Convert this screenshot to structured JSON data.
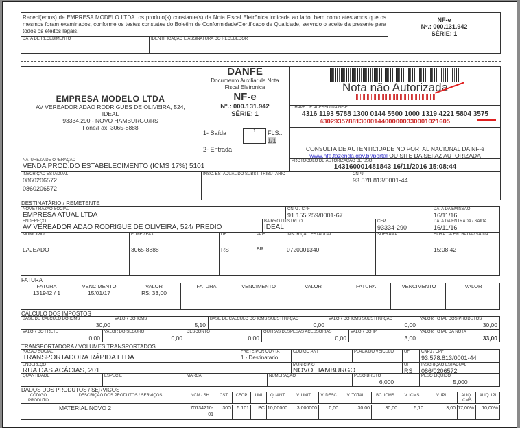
{
  "receipt": {
    "text": "Recebi(emos) de EMPRESA MODELO LTDA. os produto(s) constante(s) da Nota Fiscal Eletrônica indicada ao lado, bem como atestamos que os mesmos foram examinados, conforme os testes constates do Boletim de Conformidade/Certificado de Qualidade, servndo o aceite da presente para todos os efeitos legais.",
    "date_label": "DATA DE RECEBIMENTO",
    "signature_label": "IDENTIFICAÇÃO E ASSINATURA DO RECEBEDOR",
    "nfe": "NF-e",
    "number": "Nº.: 000.131.942",
    "serie": "SÉRIE: 1"
  },
  "emitter": {
    "name": "EMPRESA MODELO LTDA",
    "address1": "AV VEREADOR ADAO RODRIGUES DE OLIVEIRA, 524,",
    "address2": "IDEAL",
    "cep_city": "93334.290 - NOVO HAMBURGO/RS",
    "phone": "Fone/Fax: 3065-8888"
  },
  "danfe": {
    "title": "DANFE",
    "subtitle": "Documento Auxiliar da Nota Fiscal Eletronica",
    "nfe": "NF-e",
    "number": "Nº.: 000.131.942",
    "serie": "SÉRIE: 1",
    "saida": "1- Saída",
    "entrada": "2- Entrada",
    "tipo": "1",
    "fls_label": "FLS.:",
    "fls": "1/1"
  },
  "access": {
    "status": "Nota não Autorizada",
    "chave_label": "CHAVE DE ACESSO DA NF-E",
    "chave": "4316 1193 5788 1300 0144 5500 1000 1319 4221 5804 3575",
    "chave_red": "43029357881300014400000033000102160​5",
    "consulta": "CONSULTA DE AUTENTICIDADE NO PORTAL NACIONAL DA NF-e",
    "consulta_link": "www.nfe.fazenda.gov.br/portal",
    "consulta_rest": " OU SITE DA SEFAZ AUTORIZADA",
    "protocolo_label": "PROTOCOLO DE AUTORIZAÇÃO DE USO",
    "protocolo": "143160001481843 16/11/2016 15:08:44",
    "accent": "#cc2a2a"
  },
  "natureza": {
    "label": "NATUREZA DE OPERAÇÃO",
    "value": "VENDA PROD.DO ESTABELECIMENTO (ICMS 17%) 5101"
  },
  "ie": {
    "label": "INSCRIÇÃO ESTADUAL",
    "value1": "0860206572",
    "value2": "0860206572",
    "st_label": "INSC. ESTADUAL DO SUBST. TRIBUTÁRIO",
    "cnpj_label": "CNPJ",
    "cnpj": "93.578.813/0001-44"
  },
  "dest": {
    "section": "DESTINATÁRIO / REMETENTE",
    "nome_label": "NOME / RAZÃO SOCIAL",
    "nome": "EMPRESA ATUAL LTDA",
    "cnpj_label": "CNPJ / CPF",
    "cnpj": "91.155.259/0001-67",
    "emissao_label": "DATA DA EMISSÃO",
    "emissao": "16/11/16",
    "endereco_label": "ENDEREÇO",
    "endereco": "AV VEREADOR ADAO RODRIGUE DE OLIVEIRA, 524/ PREDIO",
    "bairro_label": "BAIRRO / DISTRITO",
    "bairro": "IDEAL",
    "cep_label": "CEP",
    "cep": "93334-290",
    "entrada_label": "DATA DA ENTRADA / SAÍDA",
    "entrada": "16/11/16",
    "municipio_label": "MUNICÍPIO",
    "municipio": "LAJEADO",
    "fone_label": "FONE / FAX",
    "fone": "3065-8888",
    "uf_label": "UF",
    "uf": "RS",
    "pais_label": "PAÍS",
    "pais": "BR",
    "ie_label": "INSCRIÇÃO ESTADUAL",
    "ie": "0720001340",
    "suframa_label": "SUFRAMA",
    "hora_label": "HORA DA ENTRADA / SAÍDA",
    "hora": "15:08:42"
  },
  "fatura": {
    "section": "FATURA",
    "headers": [
      "FATURA",
      "VENCIMENTO",
      "VALOR",
      "FATURA",
      "VENCIMENTO",
      "VALOR",
      "FATURA",
      "VENCIMENTO",
      "VALOR"
    ],
    "values": [
      "131942 / 1",
      "15/01/17",
      "R$: 33,00",
      "",
      "",
      "",
      "",
      "",
      ""
    ]
  },
  "impostos": {
    "section": "CÁLCULO DOS IMPOSTOS",
    "row1": [
      {
        "label": "BASE DE CÁLCULO DO ICMS",
        "value": "30,00"
      },
      {
        "label": "VALOR DO ICMS",
        "value": "5,10"
      },
      {
        "label": "BASE DE CÁLCULO DO ICMS SUBSTITUIÇÃO",
        "value": "0,00"
      },
      {
        "label": "VALOR DO ICMS SUBSTITUIÇÃO",
        "value": "0,00"
      },
      {
        "label": "VALOR TOTAL DOS PRODUTOS",
        "value": "30,00"
      }
    ],
    "row2": [
      {
        "label": "VALOR DO FRETE",
        "value": "0,00"
      },
      {
        "label": "VALOR DO SEGURO",
        "value": "0,00"
      },
      {
        "label": "DESCONTO",
        "value": "0,00"
      },
      {
        "label": "OUTRAS DESPESAS ACESSÓRIAS",
        "value": "0,00"
      },
      {
        "label": "VALOR DO IPI",
        "value": "3,00"
      },
      {
        "label": "VALOR TOTAL DA NOTA",
        "value": "33,00"
      }
    ]
  },
  "transp": {
    "section": "TRANSPORTADORA / VOLUMES TRANSPORTADOS",
    "razao_label": "RAZÃO SOCIAL",
    "razao": "TRANSPORTADORA RÁPIDA LTDA",
    "frete_label": "FRETE POR CONTA",
    "frete": "1 - Destinatario",
    "antt_label": "CÓDIGO ANTT",
    "placa_label": "PLACA DO VEÍCULO",
    "uf_label": "UF",
    "cnpj_label": "CNPJ / CPF",
    "cnpj": "93.578.813/0001-44",
    "endereco_label": "ENDEREÇO",
    "endereco": "RUA DAS ACÁCIAS, 201",
    "municipio_label": "MUNICÍPIO",
    "municipio": "NOVO  HAMBURGO",
    "uf2_label": "UF",
    "uf2": "RS",
    "ie_label": "INSCRIÇÃO ESTADUAL",
    "ie": "086/0206572",
    "qtd_label": "QUANTIDADE",
    "especie_label": "ESPÉCIE",
    "marca_label": "MARCA",
    "numeracao_label": "NUMERAÇÃO",
    "bruto_label": "PESO BRUTO",
    "bruto": "6,000",
    "liquido_label": "PESO LÍQUIDO",
    "liquido": "5,000"
  },
  "produtos": {
    "section": "DADOS DOS PRODUTOS / SERVIÇOS",
    "headers": [
      "CÓDIGO PRODUTO",
      "DESCRIÇÃO DOS PRODUTOS / SERVIÇOS",
      "NCM / SH",
      "CST",
      "CFOP",
      "UNI",
      "QUANT.",
      "V. UNIT.",
      "V. DESC.",
      "V. TOTAL",
      "BC. ICMS",
      "V. ICMS",
      "V. IPI",
      "ALIQ. ICMS",
      "ALIQ. IPI"
    ],
    "rows": [
      [
        "",
        "MATERIAL NOVO 2",
        "70134210-01",
        "300",
        "5.101",
        "PC",
        "10,00000",
        "3,000000",
        "0,00",
        "30,00",
        "30,00",
        "5,10",
        "3,00",
        "17,00%",
        "10,00%"
      ]
    ]
  }
}
